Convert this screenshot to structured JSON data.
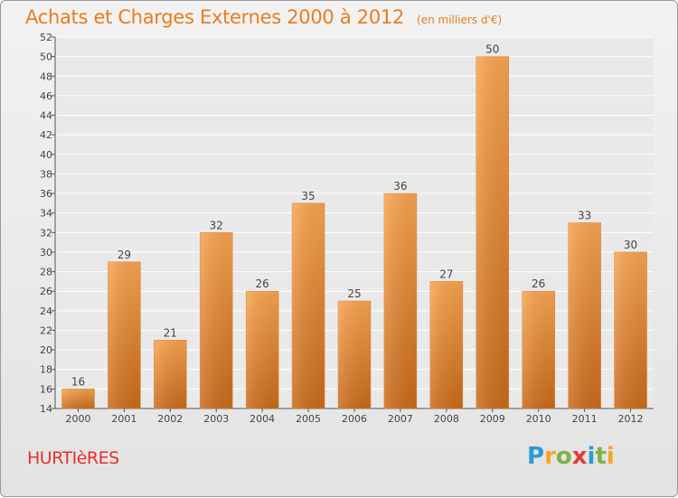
{
  "header": {
    "title": "Achats et Charges Externes 2000 à 2012",
    "subtitle": "(en milliers d'€)"
  },
  "footer": {
    "commune": "HURTIèRES",
    "logo_letters": [
      "P",
      "r",
      "o",
      "x",
      "i",
      "t",
      "i"
    ],
    "logo_colors": [
      "#2f9ad6",
      "#f5a623",
      "#7cb342",
      "#e53935",
      "#2f9ad6",
      "#7cb342",
      "#f5a623"
    ]
  },
  "chart_data": {
    "type": "bar",
    "categories": [
      "2000",
      "2001",
      "2002",
      "2003",
      "2004",
      "2005",
      "2006",
      "2007",
      "2008",
      "2009",
      "2010",
      "2011",
      "2012"
    ],
    "values": [
      16,
      29,
      21,
      32,
      26,
      35,
      25,
      36,
      27,
      50,
      26,
      33,
      30
    ],
    "yticks": [
      14,
      16,
      18,
      20,
      22,
      24,
      26,
      28,
      30,
      32,
      34,
      36,
      38,
      40,
      42,
      44,
      46,
      48,
      50,
      52
    ],
    "ylim": [
      14,
      52
    ],
    "bar_color_top": "#f7a34e",
    "bar_color_bottom": "#c86a1a",
    "grid": true
  }
}
